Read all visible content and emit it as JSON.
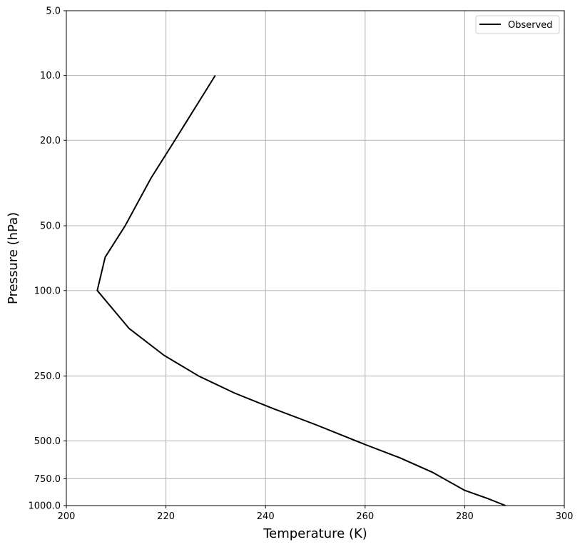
{
  "chart_data": {
    "type": "line",
    "xlabel": "Temperature (K)",
    "ylabel": "Pressure (hPa)",
    "xlim": [
      200,
      300
    ],
    "ylim": [
      1000,
      5
    ],
    "y_scale": "log",
    "y_inverted": true,
    "grid": true,
    "legend_placement": "top-right",
    "x_ticks": [
      "200",
      "220",
      "240",
      "260",
      "280",
      "300"
    ],
    "y_ticks": [
      {
        "value": 5,
        "label": "5.0"
      },
      {
        "value": 10,
        "label": "10.0"
      },
      {
        "value": 20,
        "label": "20.0"
      },
      {
        "value": 50,
        "label": "50.0"
      },
      {
        "value": 100,
        "label": "100.0"
      },
      {
        "value": 250,
        "label": "250.0"
      },
      {
        "value": 500,
        "label": "500.0"
      },
      {
        "value": 750,
        "label": "750.0"
      },
      {
        "value": 1000,
        "label": "1000.0"
      }
    ],
    "series": [
      {
        "name": "Observed",
        "color": "#000000",
        "points": [
          {
            "t": 288.2,
            "p": 1000
          },
          {
            "t": 284.5,
            "p": 925
          },
          {
            "t": 280.0,
            "p": 850
          },
          {
            "t": 273.5,
            "p": 700
          },
          {
            "t": 267.0,
            "p": 600
          },
          {
            "t": 260.0,
            "p": 520
          },
          {
            "t": 250.0,
            "p": 420
          },
          {
            "t": 241.0,
            "p": 350
          },
          {
            "t": 233.8,
            "p": 300
          },
          {
            "t": 226.6,
            "p": 250
          },
          {
            "t": 219.6,
            "p": 200
          },
          {
            "t": 212.6,
            "p": 150
          },
          {
            "t": 206.2,
            "p": 100
          },
          {
            "t": 207.8,
            "p": 70
          },
          {
            "t": 211.8,
            "p": 50
          },
          {
            "t": 217.0,
            "p": 30
          },
          {
            "t": 221.8,
            "p": 20
          },
          {
            "t": 229.9,
            "p": 10
          }
        ]
      }
    ]
  }
}
